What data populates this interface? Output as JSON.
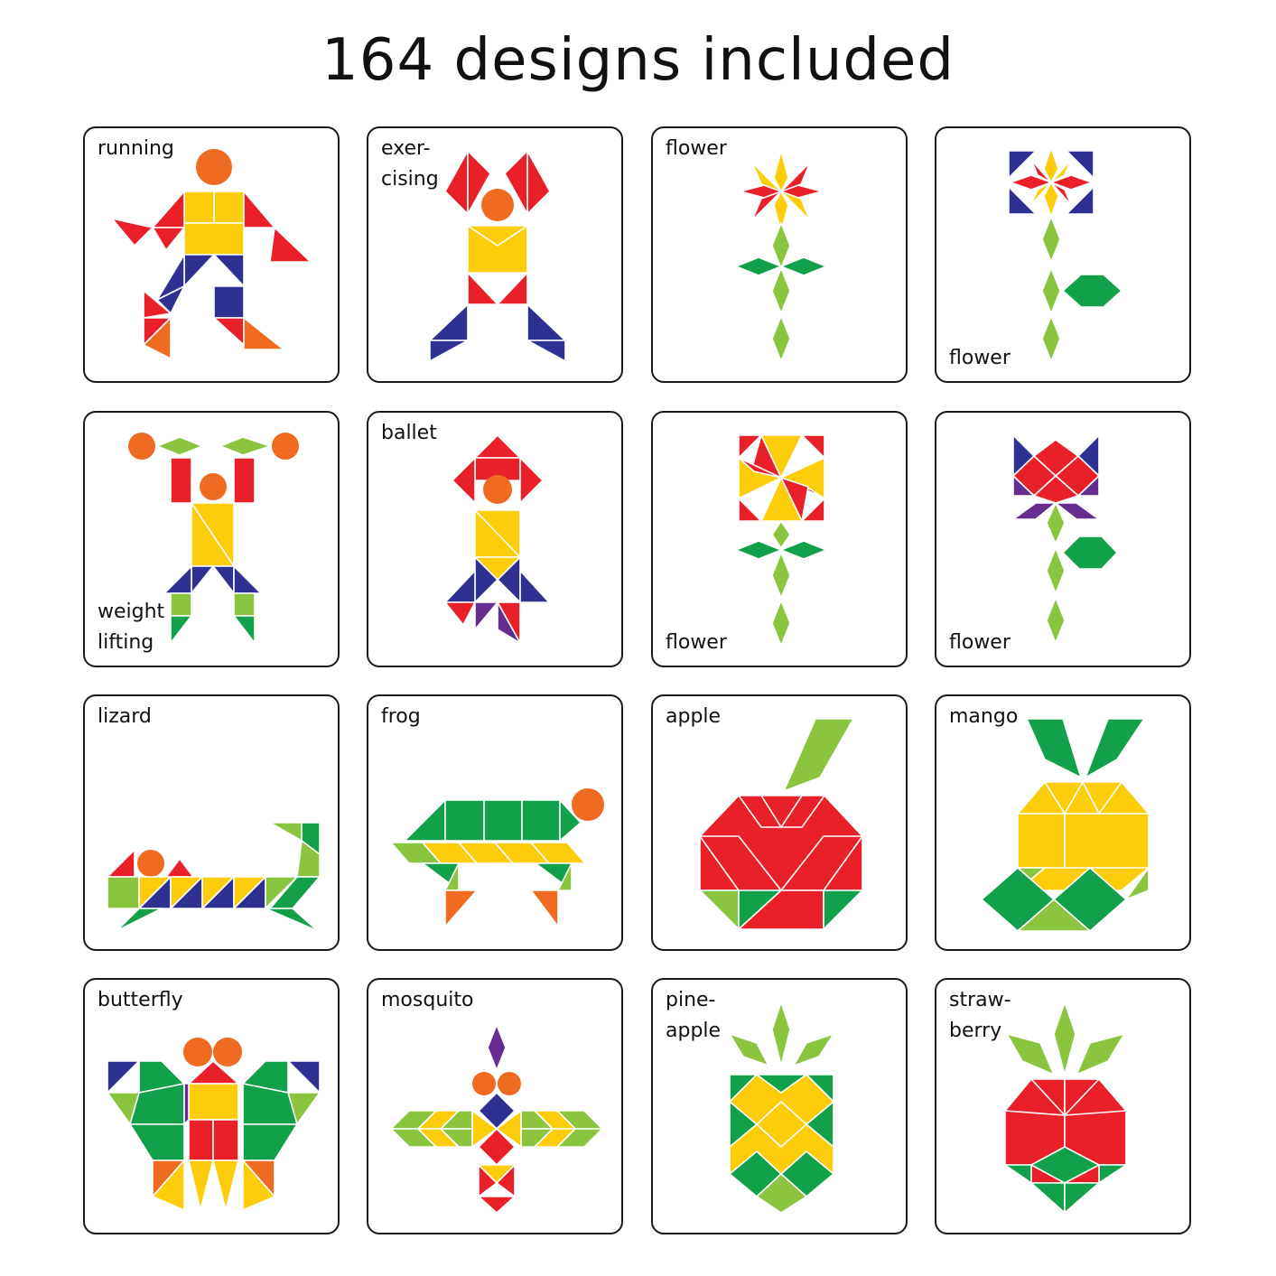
{
  "title": "164 designs included",
  "colors": {
    "red": "#e92027",
    "orange": "#ef6b22",
    "yellow": "#fdcc0a",
    "blue": "#2e3192",
    "green": "#13a04b",
    "lightgreen": "#8bc53f",
    "purple": "#662d91"
  },
  "cards": [
    {
      "id": "running",
      "label": "running",
      "label_pos": "top"
    },
    {
      "id": "exercising",
      "label": "exer-\ncising",
      "label_pos": "top"
    },
    {
      "id": "flower-1",
      "label": "flower",
      "label_pos": "top"
    },
    {
      "id": "flower-2",
      "label": "flower",
      "label_pos": "bottom"
    },
    {
      "id": "weight-lifting",
      "label": "weight\nlifting",
      "label_pos": "bottom"
    },
    {
      "id": "ballet",
      "label": "ballet",
      "label_pos": "top"
    },
    {
      "id": "flower-3",
      "label": "flower",
      "label_pos": "bottom"
    },
    {
      "id": "flower-4",
      "label": "flower",
      "label_pos": "bottom"
    },
    {
      "id": "lizard",
      "label": "lizard",
      "label_pos": "top"
    },
    {
      "id": "frog",
      "label": "frog",
      "label_pos": "top"
    },
    {
      "id": "apple",
      "label": "apple",
      "label_pos": "top"
    },
    {
      "id": "mango",
      "label": "mango",
      "label_pos": "top"
    },
    {
      "id": "butterfly",
      "label": "butterfly",
      "label_pos": "top"
    },
    {
      "id": "mosquito",
      "label": "mosquito",
      "label_pos": "top"
    },
    {
      "id": "pineapple",
      "label": "pine-\napple",
      "label_pos": "top"
    },
    {
      "id": "strawberry",
      "label": "straw-\nberry",
      "label_pos": "top"
    }
  ]
}
